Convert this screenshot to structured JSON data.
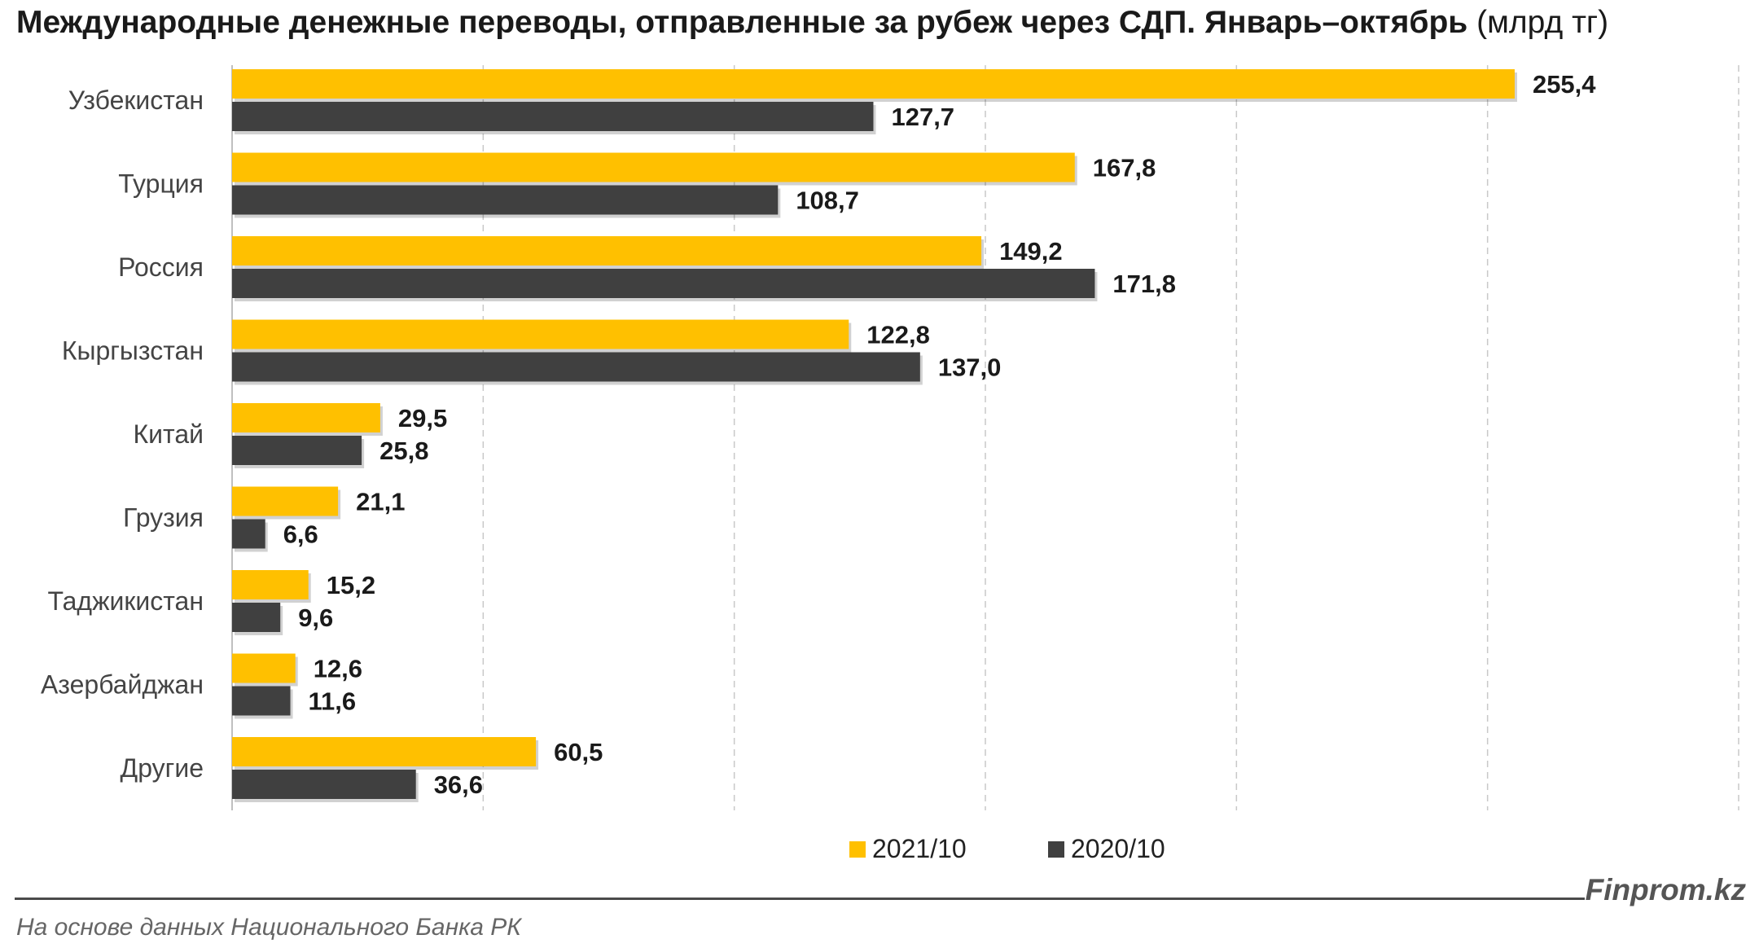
{
  "title": {
    "main": "Международные денежные переводы, отправленные за рубеж через СДП. Январь–октябрь",
    "unit": "(млрд тг)"
  },
  "chart_data": {
    "type": "bar",
    "orientation": "horizontal",
    "categories": [
      "Узбекистан",
      "Турция",
      "Россия",
      "Кыргызстан",
      "Китай",
      "Грузия",
      "Таджикистан",
      "Азербайджан",
      "Другие"
    ],
    "series": [
      {
        "name": "2021/10",
        "color": "#FFC000",
        "values": [
          255.4,
          167.8,
          149.2,
          122.8,
          29.5,
          21.1,
          15.2,
          12.6,
          60.5
        ],
        "labels": [
          "255,4",
          "167,8",
          "149,2",
          "122,8",
          "29,5",
          "21,1",
          "15,2",
          "12,6",
          "60,5"
        ]
      },
      {
        "name": "2020/10",
        "color": "#404040",
        "values": [
          127.7,
          108.7,
          171.8,
          137.0,
          25.8,
          6.6,
          9.6,
          11.6,
          36.6
        ],
        "labels": [
          "127,7",
          "108,7",
          "171,8",
          "137,0",
          "25,8",
          "6,6",
          "9,6",
          "11,6",
          "36,6"
        ]
      }
    ],
    "xlim": [
      0,
      300
    ],
    "grid": true,
    "legend": "bottom",
    "xlabel": "",
    "ylabel": ""
  },
  "brand": "Finprom.kz",
  "source": "На основе данных Национального Банка РК"
}
